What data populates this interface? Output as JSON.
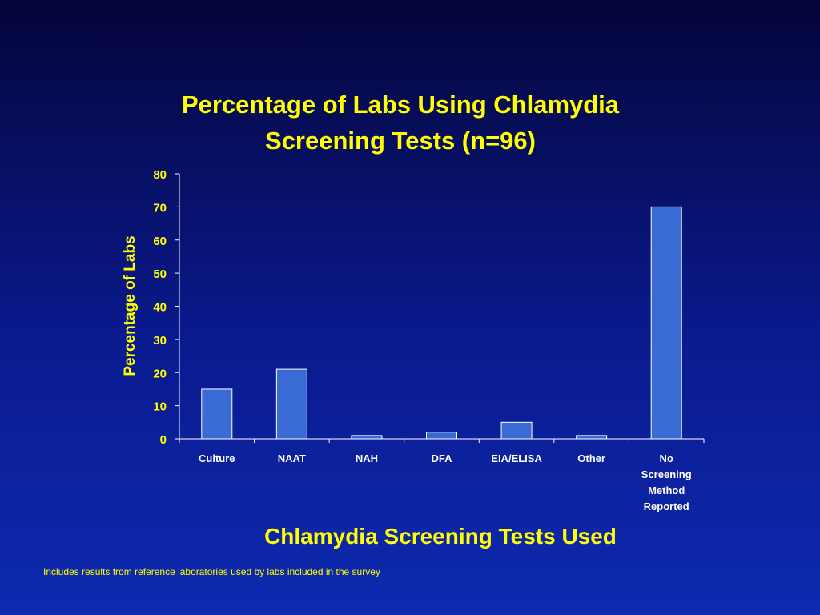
{
  "chart_data": {
    "type": "bar",
    "title_lines": [
      "Percentage of Labs Using Chlamydia",
      "Screening Tests (n=96)"
    ],
    "xlabel": "Chlamydia Screening Tests Used",
    "ylabel": "Percentage of Labs",
    "ylim": [
      0,
      80
    ],
    "yticks": [
      "0",
      "10",
      "20",
      "30",
      "40",
      "50",
      "60",
      "70",
      "80"
    ],
    "categories": [
      [
        "Culture"
      ],
      [
        "NAAT"
      ],
      [
        "NAH"
      ],
      [
        "DFA"
      ],
      [
        "EIA/ELISA"
      ],
      [
        "Other"
      ],
      [
        "No",
        "Screening",
        "Method",
        "Reported"
      ]
    ],
    "values": [
      15,
      21,
      1,
      2,
      5,
      1,
      70
    ],
    "grid": false,
    "legend": "none"
  },
  "footnote": "Includes results from reference laboratories used by labs included in the survey",
  "colors": {
    "background": "#0a1a8e",
    "text": "#ffff00",
    "bar": "#3a6ad4",
    "bar_outline": "#ffffff",
    "axis": "#ffffff",
    "tick_label": "#ffffff"
  }
}
